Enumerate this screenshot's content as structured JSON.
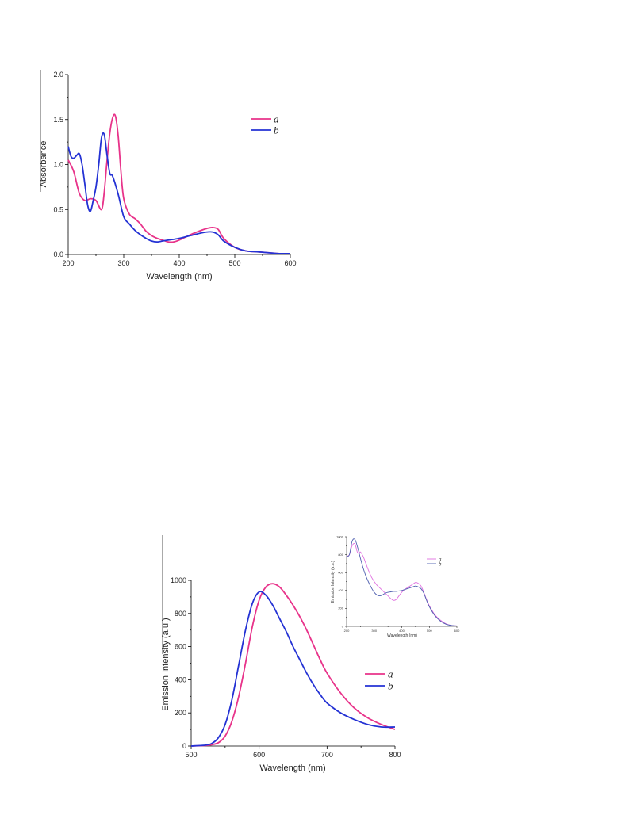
{
  "chart_data": [
    {
      "type": "line",
      "xlabel": "Wavelength (nm)",
      "ylabel": "Absorbance",
      "xlim": [
        200,
        600
      ],
      "ylim": [
        0,
        2.0
      ],
      "xticks": [
        "200",
        "300",
        "400",
        "500",
        "600"
      ],
      "yticks": [
        "0.0",
        "0.5",
        "1.0",
        "1.5",
        "2.0"
      ],
      "legend_position": "top-right",
      "series": [
        {
          "name": "a",
          "color": "#e8338a",
          "x": [
            200,
            210,
            220,
            230,
            240,
            250,
            260,
            265,
            270,
            275,
            280,
            285,
            290,
            295,
            300,
            310,
            320,
            330,
            340,
            350,
            360,
            370,
            380,
            390,
            400,
            420,
            440,
            450,
            460,
            470,
            480,
            500,
            520,
            540,
            560,
            580,
            600
          ],
          "y": [
            1.05,
            0.92,
            0.68,
            0.6,
            0.62,
            0.6,
            0.5,
            0.7,
            1.05,
            1.35,
            1.52,
            1.54,
            1.32,
            0.92,
            0.62,
            0.45,
            0.4,
            0.34,
            0.26,
            0.21,
            0.18,
            0.16,
            0.14,
            0.14,
            0.16,
            0.22,
            0.27,
            0.29,
            0.3,
            0.28,
            0.18,
            0.08,
            0.04,
            0.03,
            0.02,
            0.01,
            0.01
          ]
        },
        {
          "name": "b",
          "color": "#2432d4",
          "x": [
            200,
            205,
            210,
            215,
            220,
            225,
            230,
            235,
            240,
            245,
            250,
            255,
            260,
            265,
            270,
            275,
            280,
            290,
            300,
            310,
            320,
            330,
            340,
            350,
            360,
            370,
            380,
            400,
            420,
            440,
            450,
            460,
            470,
            480,
            500,
            520,
            540,
            560,
            580,
            600
          ],
          "y": [
            1.2,
            1.09,
            1.07,
            1.1,
            1.12,
            1.0,
            0.78,
            0.55,
            0.48,
            0.6,
            0.75,
            1.0,
            1.3,
            1.33,
            1.1,
            0.9,
            0.87,
            0.67,
            0.42,
            0.34,
            0.27,
            0.22,
            0.18,
            0.15,
            0.14,
            0.15,
            0.16,
            0.18,
            0.21,
            0.24,
            0.25,
            0.25,
            0.22,
            0.15,
            0.08,
            0.04,
            0.03,
            0.02,
            0.01,
            0.01
          ]
        }
      ]
    },
    {
      "type": "line",
      "xlabel": "Wavelength (nm)",
      "ylabel": "Emission Intensity (a.u.)",
      "xlim": [
        500,
        800
      ],
      "ylim": [
        0,
        1000
      ],
      "xticks": [
        "500",
        "600",
        "700",
        "800"
      ],
      "yticks": [
        "0",
        "200",
        "400",
        "600",
        "800",
        "1000"
      ],
      "legend_position": "right",
      "series": [
        {
          "name": "a",
          "color": "#e8338a",
          "x": [
            500,
            520,
            530,
            540,
            550,
            560,
            570,
            580,
            590,
            600,
            610,
            620,
            630,
            640,
            650,
            660,
            670,
            680,
            690,
            700,
            720,
            740,
            760,
            780,
            800
          ],
          "y": [
            0,
            3,
            8,
            20,
            60,
            150,
            300,
            500,
            720,
            880,
            960,
            980,
            960,
            910,
            850,
            780,
            700,
            610,
            520,
            440,
            320,
            230,
            170,
            130,
            100
          ]
        },
        {
          "name": "b",
          "color": "#2432d4",
          "x": [
            500,
            520,
            530,
            540,
            550,
            560,
            570,
            580,
            590,
            600,
            610,
            620,
            630,
            640,
            650,
            660,
            670,
            680,
            690,
            700,
            720,
            740,
            760,
            780,
            800
          ],
          "y": [
            0,
            5,
            15,
            50,
            130,
            280,
            490,
            700,
            860,
            930,
            910,
            850,
            770,
            690,
            600,
            520,
            440,
            370,
            310,
            260,
            200,
            160,
            130,
            115,
            115
          ]
        }
      ]
    },
    {
      "type": "line",
      "xlabel": "Wavelength (nm)",
      "ylabel": "Emission Intensity (a.u.)",
      "xlim": [
        200,
        600
      ],
      "ylim": [
        0,
        1000
      ],
      "xticks": [
        "200",
        "300",
        "400",
        "500",
        "600"
      ],
      "yticks": [
        "0",
        "200",
        "400",
        "600",
        "800",
        "1000"
      ],
      "legend_position": "top-right",
      "series": [
        {
          "name": "a",
          "color": "#e070e0",
          "x": [
            200,
            210,
            220,
            230,
            240,
            250,
            260,
            270,
            280,
            290,
            300,
            310,
            320,
            330,
            340,
            350,
            360,
            370,
            380,
            390,
            400,
            410,
            420,
            430,
            440,
            450,
            460,
            470,
            480,
            490,
            500,
            520,
            540,
            560,
            580,
            600
          ],
          "y": [
            780,
            800,
            900,
            920,
            820,
            830,
            780,
            700,
            620,
            550,
            500,
            460,
            430,
            400,
            370,
            340,
            310,
            290,
            300,
            340,
            380,
            410,
            430,
            450,
            470,
            490,
            480,
            450,
            380,
            300,
            230,
            130,
            70,
            30,
            10,
            5
          ]
        },
        {
          "name": "b",
          "color": "#5060b0",
          "x": [
            200,
            210,
            220,
            230,
            240,
            250,
            260,
            270,
            280,
            290,
            300,
            310,
            320,
            330,
            340,
            350,
            360,
            370,
            380,
            390,
            400,
            410,
            420,
            430,
            440,
            450,
            460,
            470,
            480,
            490,
            500,
            520,
            540,
            560,
            580,
            600
          ],
          "y": [
            780,
            800,
            950,
            970,
            880,
            760,
            650,
            560,
            490,
            430,
            380,
            350,
            340,
            350,
            370,
            380,
            385,
            390,
            390,
            395,
            400,
            410,
            420,
            430,
            440,
            450,
            440,
            420,
            370,
            290,
            220,
            120,
            60,
            25,
            10,
            5
          ]
        }
      ]
    }
  ]
}
